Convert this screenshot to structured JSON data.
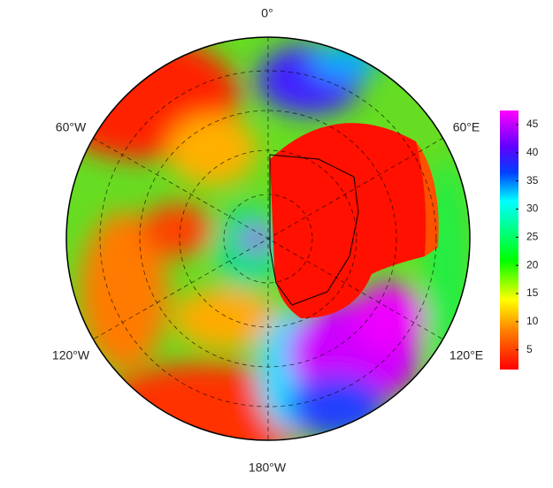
{
  "map": {
    "labels": {
      "top": "0°",
      "upper_left": "60°W",
      "upper_right": "60°E",
      "lower_left": "120°W",
      "lower_right": "120°E",
      "bottom": "180°W"
    }
  },
  "colorbar": {
    "lim": [
      1.5,
      47.5
    ],
    "ticks": [
      5,
      10,
      15,
      20,
      25,
      30,
      35,
      40,
      45
    ]
  }
}
